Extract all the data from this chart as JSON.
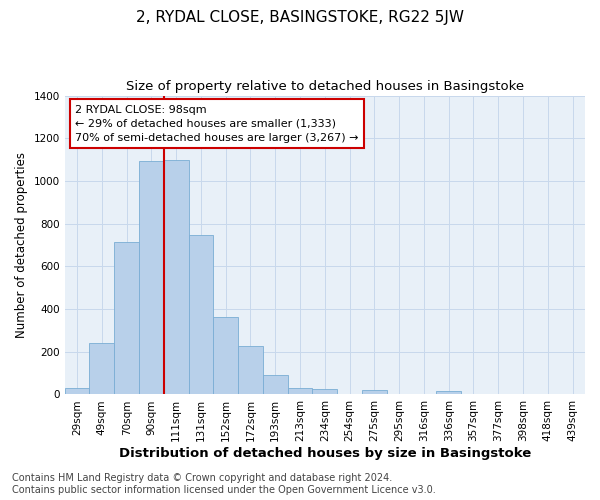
{
  "title": "2, RYDAL CLOSE, BASINGSTOKE, RG22 5JW",
  "subtitle": "Size of property relative to detached houses in Basingstoke",
  "xlabel": "Distribution of detached houses by size in Basingstoke",
  "ylabel": "Number of detached properties",
  "footer_line1": "Contains HM Land Registry data © Crown copyright and database right 2024.",
  "footer_line2": "Contains public sector information licensed under the Open Government Licence v3.0.",
  "bin_labels": [
    "29sqm",
    "49sqm",
    "70sqm",
    "90sqm",
    "111sqm",
    "131sqm",
    "152sqm",
    "172sqm",
    "193sqm",
    "213sqm",
    "234sqm",
    "254sqm",
    "275sqm",
    "295sqm",
    "316sqm",
    "336sqm",
    "357sqm",
    "377sqm",
    "398sqm",
    "418sqm",
    "439sqm"
  ],
  "bar_values": [
    30,
    240,
    715,
    1095,
    1100,
    745,
    365,
    225,
    90,
    30,
    25,
    0,
    20,
    0,
    0,
    15,
    0,
    0,
    0,
    0,
    0
  ],
  "bar_color": "#b8d0ea",
  "bar_edge_color": "#7aadd4",
  "grid_color": "#c8d8ec",
  "bg_color": "#e8f0f8",
  "vline_color": "#cc0000",
  "annotation_title": "2 RYDAL CLOSE: 98sqm",
  "annotation_line1": "← 29% of detached houses are smaller (1,333)",
  "annotation_line2": "70% of semi-detached houses are larger (3,267) →",
  "annotation_box_color": "#cc0000",
  "ylim": [
    0,
    1400
  ],
  "yticks": [
    0,
    200,
    400,
    600,
    800,
    1000,
    1200,
    1400
  ],
  "title_fontsize": 11,
  "subtitle_fontsize": 9.5,
  "xlabel_fontsize": 9.5,
  "ylabel_fontsize": 8.5,
  "tick_fontsize": 7.5,
  "annot_fontsize": 8,
  "footer_fontsize": 7
}
